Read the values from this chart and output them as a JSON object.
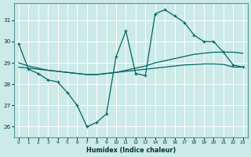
{
  "background_color": "#cceae7",
  "grid_color": "#b0d8d4",
  "line_color": "#006666",
  "xlim": [
    -0.5,
    23.5
  ],
  "ylim": [
    25.5,
    31.8
  ],
  "yticks": [
    26,
    27,
    28,
    29,
    30,
    31
  ],
  "xticks": [
    0,
    1,
    2,
    3,
    4,
    5,
    6,
    7,
    8,
    9,
    10,
    11,
    12,
    13,
    14,
    15,
    16,
    17,
    18,
    19,
    20,
    21,
    22,
    23
  ],
  "xlabel": "Humidex (Indice chaleur)",
  "series1_x": [
    0,
    1,
    2,
    3,
    4,
    5,
    6,
    7,
    8,
    9,
    10,
    11,
    12,
    13,
    14,
    15,
    16,
    17,
    18,
    19,
    20,
    21,
    22,
    23
  ],
  "series1_y": [
    29.9,
    28.7,
    28.5,
    28.2,
    28.1,
    27.6,
    27.0,
    26.0,
    26.2,
    26.6,
    29.3,
    30.5,
    28.5,
    28.4,
    31.3,
    31.5,
    31.2,
    30.9,
    30.3,
    30.0,
    30.0,
    29.5,
    28.9,
    28.8
  ],
  "series2_x": [
    0,
    1,
    2,
    3,
    4,
    5,
    6,
    7,
    8,
    9,
    10,
    11,
    12,
    13,
    14,
    15,
    16,
    17,
    18,
    19,
    20,
    21,
    22,
    23
  ],
  "series2_y": [
    29.0,
    28.85,
    28.75,
    28.65,
    28.6,
    28.55,
    28.5,
    28.45,
    28.45,
    28.5,
    28.55,
    28.65,
    28.75,
    28.85,
    29.0,
    29.1,
    29.2,
    29.3,
    29.4,
    29.45,
    29.5,
    29.5,
    29.5,
    29.45
  ],
  "series3_x": [
    0,
    1,
    2,
    3,
    4,
    5,
    6,
    7,
    8,
    9,
    10,
    11,
    12,
    13,
    14,
    15,
    16,
    17,
    18,
    19,
    20,
    21,
    22,
    23
  ],
  "series3_y": [
    28.8,
    28.75,
    28.7,
    28.65,
    28.6,
    28.55,
    28.5,
    28.45,
    28.45,
    28.5,
    28.55,
    28.6,
    28.65,
    28.7,
    28.75,
    28.8,
    28.85,
    28.9,
    28.92,
    28.95,
    28.95,
    28.93,
    28.8,
    28.8
  ]
}
